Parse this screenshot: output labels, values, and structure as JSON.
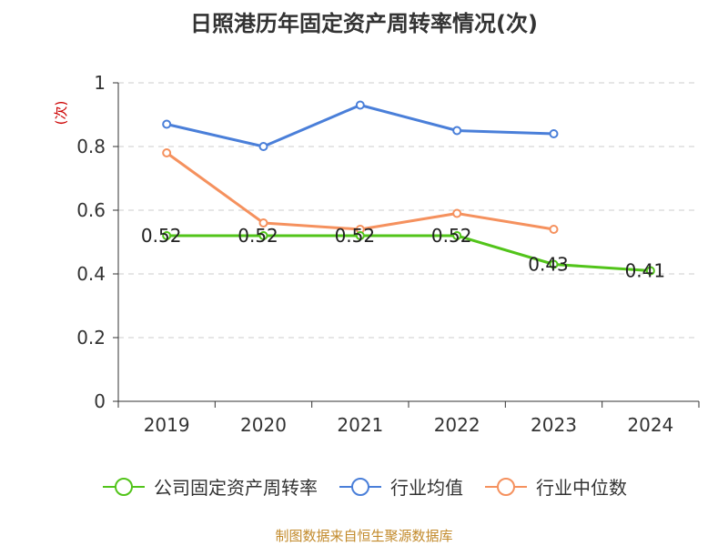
{
  "title": "日照港历年固定资产周转率情况(次)",
  "source_note": "制图数据来自恒生聚源数据库",
  "chart_data": {
    "type": "line",
    "title": "日照港历年固定资产周转率情况(次)",
    "ylabel": "(次)",
    "xlabel": "",
    "categories": [
      "2019",
      "2020",
      "2021",
      "2022",
      "2023",
      "2024"
    ],
    "ylim": [
      0,
      1
    ],
    "yticks": [
      0,
      0.2,
      0.4,
      0.6,
      0.8,
      1
    ],
    "ytick_labels": [
      "0",
      "0.2",
      "0.4",
      "0.6",
      "0.8",
      "1"
    ],
    "grid": true,
    "legend_position": "bottom",
    "series": [
      {
        "name": "公司固定资产周转率",
        "color": "#52c41a",
        "values": [
          0.52,
          0.52,
          0.52,
          0.52,
          0.43,
          0.41
        ],
        "data_labels": [
          "0.52",
          "0.52",
          "0.52",
          "0.52",
          "0.43",
          "0.41"
        ]
      },
      {
        "name": "行业均值",
        "color": "#4a7fd9",
        "values": [
          0.87,
          0.8,
          0.93,
          0.85,
          0.84,
          null
        ]
      },
      {
        "name": "行业中位数",
        "color": "#f5915e",
        "values": [
          0.78,
          0.56,
          0.54,
          0.59,
          0.54,
          null
        ]
      }
    ]
  }
}
